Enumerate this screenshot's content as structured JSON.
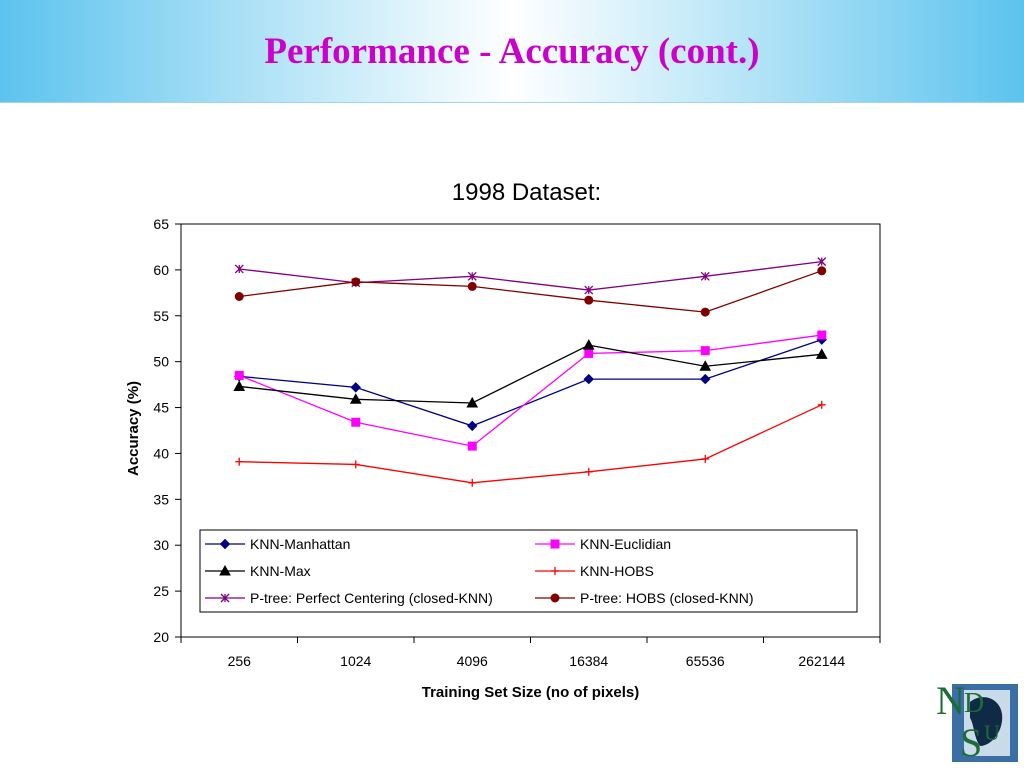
{
  "slide": {
    "title": "Performance - Accuracy (cont.)"
  },
  "chart_data": {
    "type": "line",
    "title": "1998 Dataset:",
    "xlabel": "Training Set Size (no of pixels)",
    "ylabel": "Accuracy (%)",
    "categories": [
      "256",
      "1024",
      "4096",
      "16384",
      "65536",
      "262144"
    ],
    "ylim": [
      20,
      65
    ],
    "yticks": [
      20,
      25,
      30,
      35,
      40,
      45,
      50,
      55,
      60,
      65
    ],
    "grid": false,
    "legend_position": "bottom-inside",
    "series": [
      {
        "name": "KNN-Manhattan",
        "color": "#000080",
        "marker": "diamond",
        "values": [
          48.4,
          47.2,
          43.0,
          48.1,
          48.1,
          52.4
        ]
      },
      {
        "name": "KNN-Euclidian",
        "color": "#ff00ff",
        "marker": "square",
        "values": [
          48.5,
          43.4,
          40.8,
          50.9,
          51.2,
          52.9
        ]
      },
      {
        "name": "KNN-Max",
        "color": "#000000",
        "marker": "triangle",
        "values": [
          47.3,
          45.9,
          45.5,
          51.8,
          49.5,
          50.8
        ]
      },
      {
        "name": "KNN-HOBS",
        "color": "#ff0000",
        "marker": "plus",
        "values": [
          39.1,
          38.8,
          36.8,
          38.0,
          39.4,
          45.3
        ]
      },
      {
        "name": "P-tree: Perfect Centering (closed-KNN)",
        "color": "#800080",
        "marker": "asterisk",
        "values": [
          60.1,
          58.6,
          59.3,
          57.8,
          59.3,
          60.9
        ]
      },
      {
        "name": "P-tree: HOBS (closed-KNN)",
        "color": "#800000",
        "marker": "circle",
        "values": [
          57.1,
          58.7,
          58.2,
          56.7,
          55.4,
          59.9
        ]
      }
    ]
  },
  "logo": {
    "text": "NDSU",
    "icon": "ndsu-logo-icon"
  }
}
